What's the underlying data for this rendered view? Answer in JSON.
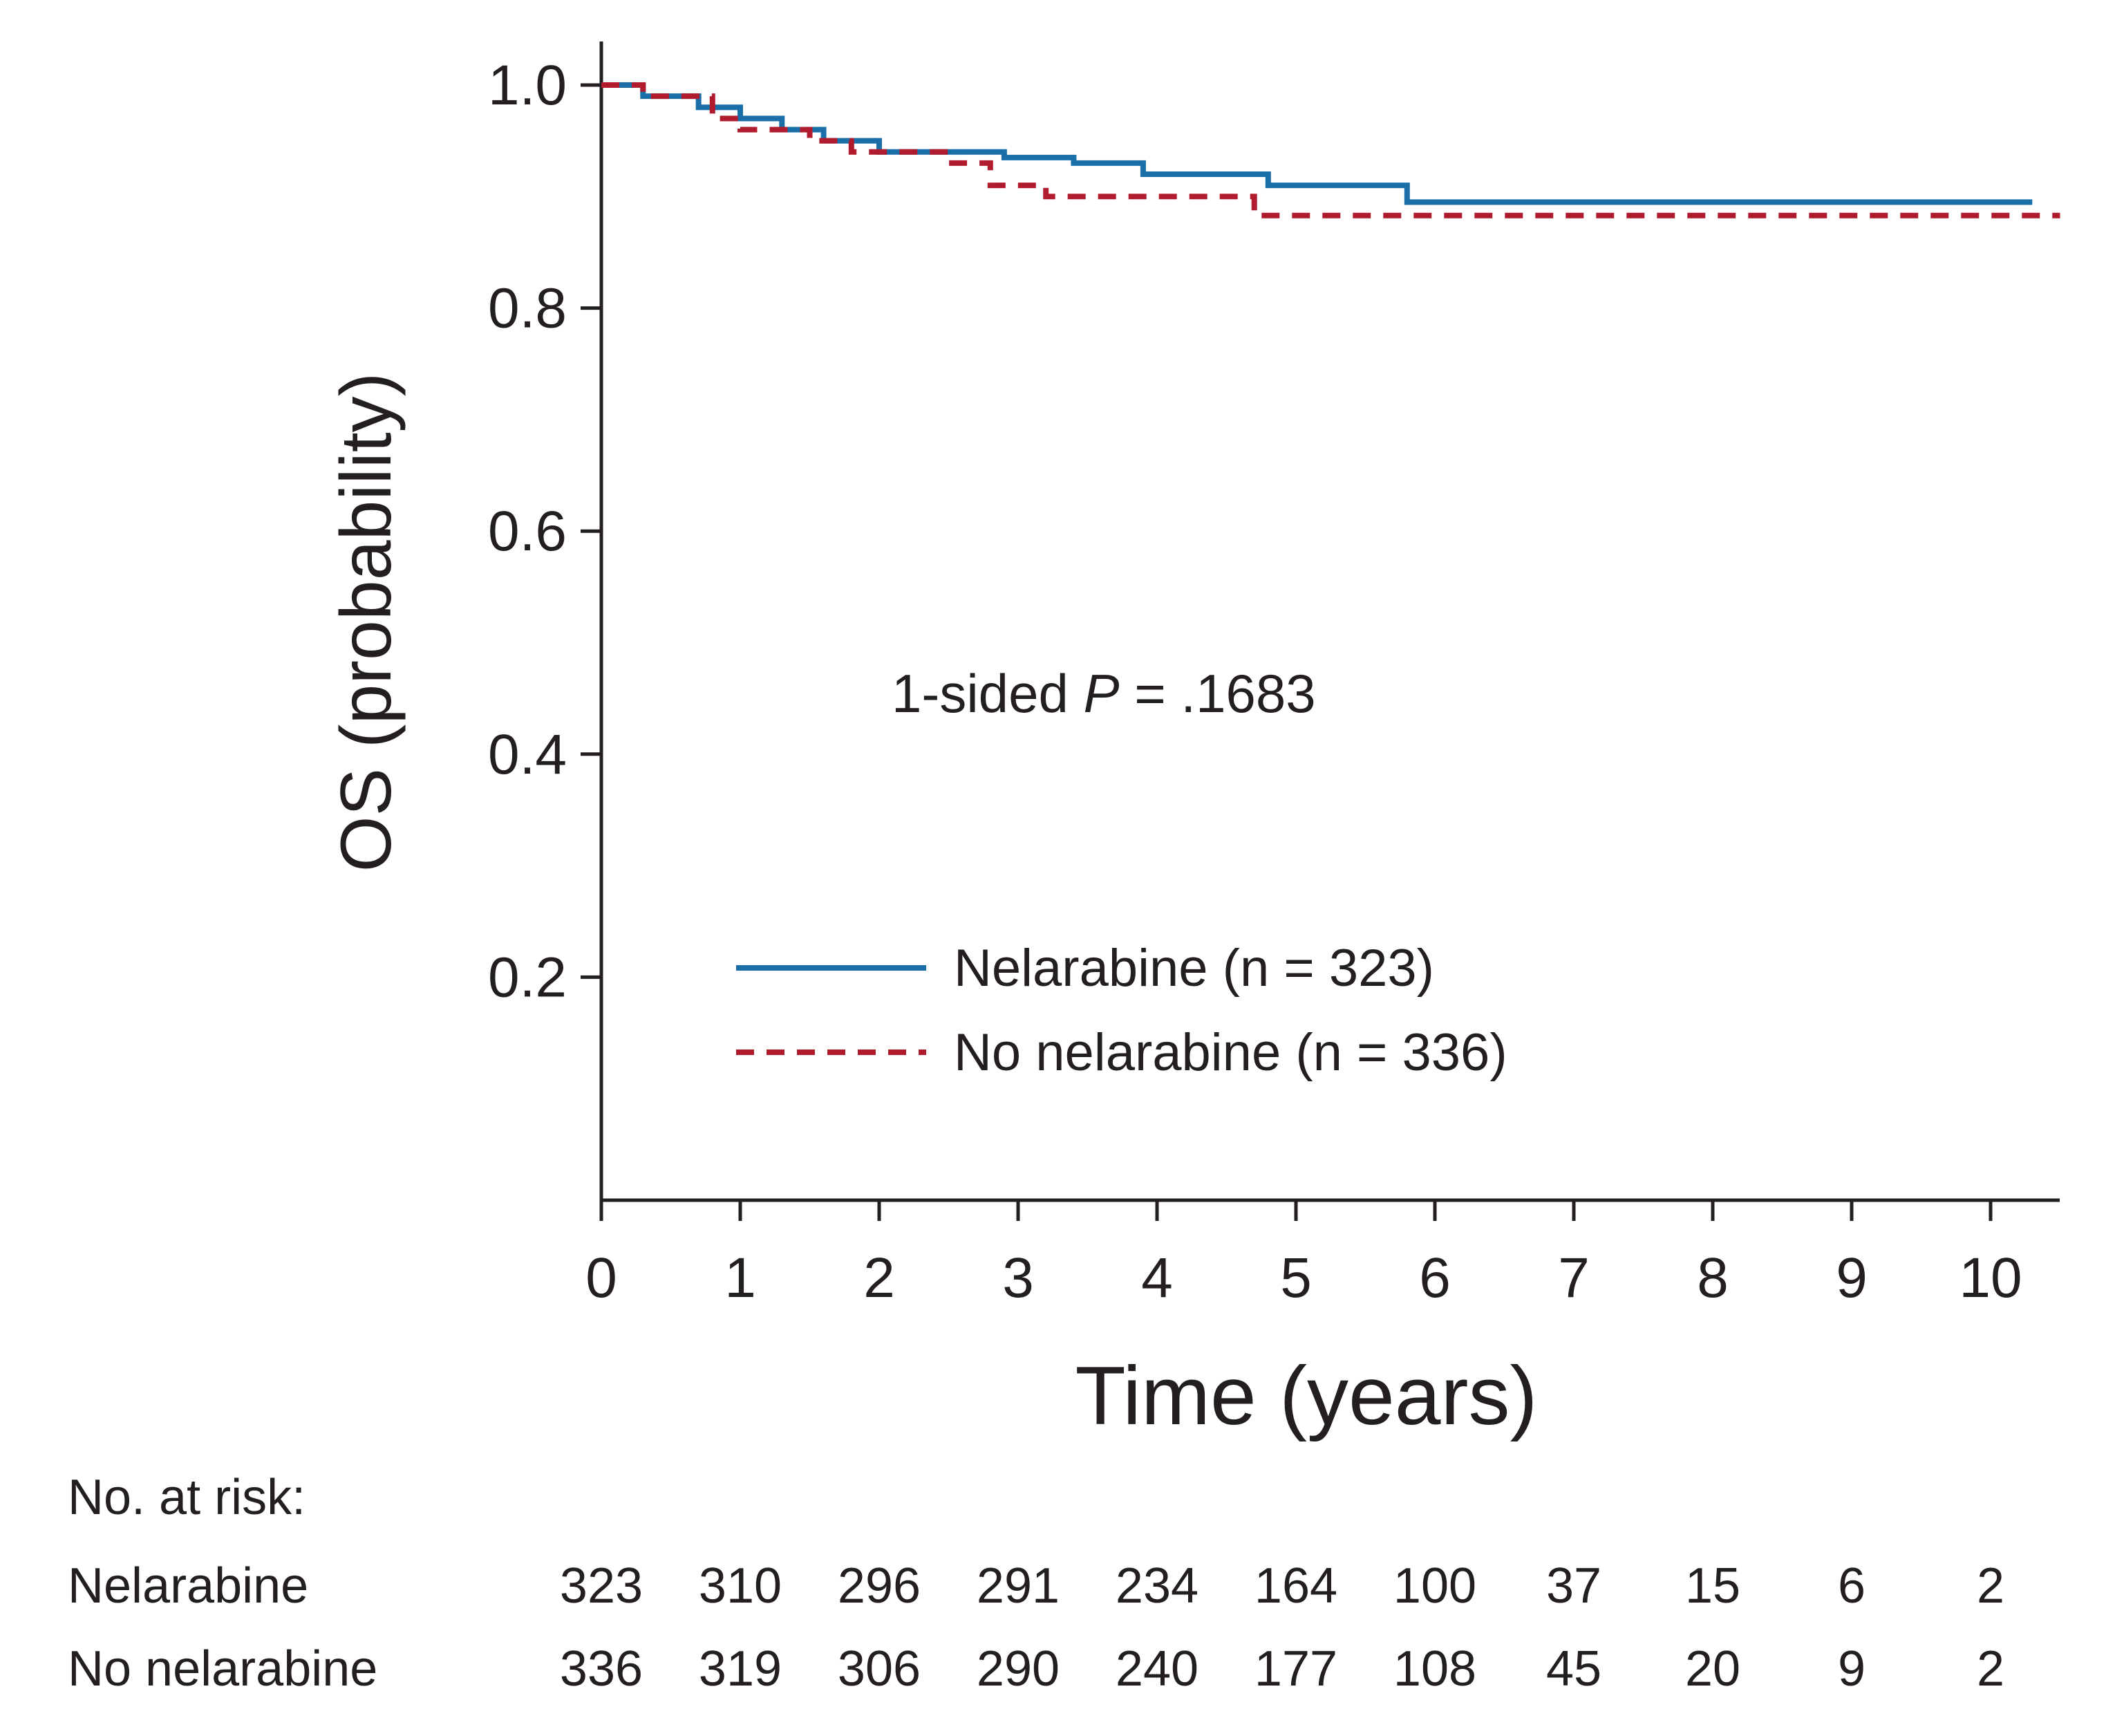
{
  "chart_data": {
    "type": "line",
    "subtype": "kaplan-meier",
    "ylabel": "OS (probability)",
    "xlabel": "Time (years)",
    "xlim": [
      0,
      10.5
    ],
    "ylim": [
      0,
      1.0
    ],
    "x_ticks": [
      0,
      1,
      2,
      3,
      4,
      5,
      6,
      7,
      8,
      9,
      10
    ],
    "y_ticks": [
      0.2,
      0.4,
      0.6,
      0.8,
      1.0
    ],
    "y_tick_labels": [
      "0.2",
      "0.4",
      "0.6",
      "0.8",
      "1.0"
    ],
    "grid": false,
    "legend_placement": "lower-center",
    "annotation": {
      "prefix": "1-sided ",
      "italic": "P",
      "suffix": " = .1683"
    },
    "series": [
      {
        "name": "Nelarabine (n = 323)",
        "color": "#1a6fa8",
        "style": "solid",
        "x": [
          0,
          0.3,
          0.7,
          1.0,
          1.3,
          1.6,
          2.0,
          2.9,
          3.4,
          3.9,
          4.8,
          5.8,
          10.3
        ],
        "y": [
          1.0,
          0.99,
          0.98,
          0.97,
          0.96,
          0.95,
          0.94,
          0.935,
          0.93,
          0.92,
          0.91,
          0.895,
          0.895
        ]
      },
      {
        "name": "No nelarabine (n = 336)",
        "color": "#b01c2e",
        "style": "dashed",
        "x": [
          0,
          0.3,
          0.8,
          1.0,
          1.5,
          1.8,
          2.5,
          2.8,
          3.2,
          4.7,
          10.5
        ],
        "y": [
          1.0,
          0.99,
          0.97,
          0.96,
          0.95,
          0.94,
          0.93,
          0.91,
          0.9,
          0.883,
          0.883
        ]
      }
    ],
    "risk_table": {
      "title": "No. at risk:",
      "rows": [
        {
          "label": "Nelarabine",
          "values": [
            "323",
            "310",
            "296",
            "291",
            "234",
            "164",
            "100",
            "37",
            "15",
            "6",
            "2"
          ]
        },
        {
          "label": "No nelarabine",
          "values": [
            "336",
            "319",
            "306",
            "290",
            "240",
            "177",
            "108",
            "45",
            "20",
            "9",
            "2"
          ]
        }
      ]
    }
  }
}
